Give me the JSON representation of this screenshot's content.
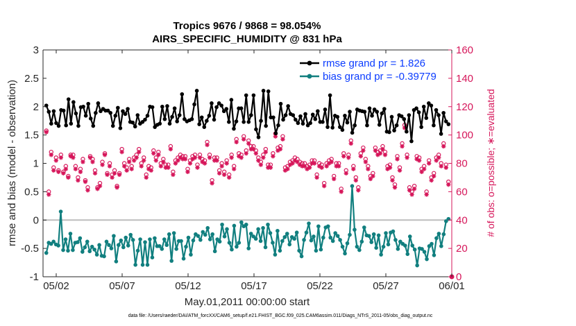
{
  "chart_data": {
    "type": "line",
    "title": "Tropics 9676 / 9868 = 98.054%",
    "subtitle": "AIRS_SPECIFIC_HUMIDITY @ 831 hPa",
    "xlabel": "May.01,2011 00:00:00 start",
    "ylabel": "rmse and bias (model - observation)",
    "ylabel_right": "# of obs: o=possible; ∗=evaluated",
    "footer": "data file: /Users/raeder/DAI/ATM_forcXX/CAM6_setup/f.e21.FHIST_BGC.f09_025.CAM6assim.011/Diags_NTrS_2011-05/obs_diag_output.nc",
    "x_tick_labels": [
      "05/02",
      "05/07",
      "05/12",
      "05/17",
      "05/22",
      "05/27",
      "06/01"
    ],
    "x_tick_days": [
      2,
      7,
      12,
      17,
      22,
      27,
      32
    ],
    "xlim_days": [
      1,
      32
    ],
    "ylim": [
      -1,
      3
    ],
    "y_tick_labels": [
      "-1",
      "-0.5",
      "0",
      "0.5",
      "1",
      "1.5",
      "2",
      "2.5",
      "3"
    ],
    "ylim_right": [
      0,
      160
    ],
    "y_tick_labels_right": [
      "0",
      "20",
      "40",
      "60",
      "80",
      "100",
      "120",
      "140",
      "160"
    ],
    "grid": false,
    "legend_position": "top-right",
    "colors": {
      "rmse": "#000000",
      "bias": "#117f7f",
      "obs": "#d6165a",
      "zero_line": "#bdbdbd",
      "axis": "#262626"
    },
    "series": [
      {
        "name": "rmse grand pr = 1.826",
        "values": [
          2.02,
          1.91,
          1.7,
          1.92,
          1.71,
          1.66,
          1.94,
          1.93,
          1.67,
          2.13,
          1.7,
          2.08,
          1.88,
          1.66,
          1.99,
          2.0,
          1.84,
          2.05,
          1.79,
          1.66,
          1.89,
          2.06,
          1.92,
          1.96,
          1.93,
          1.93,
          1.89,
          1.66,
          1.84,
          1.98,
          1.62,
          1.92,
          1.87,
          1.96,
          1.73,
          1.72,
          1.65,
          1.85,
          1.7,
          1.73,
          1.77,
          1.84,
          2.0,
          1.99,
          1.64,
          1.68,
          1.7,
          2.0,
          1.78,
          2.01,
          1.7,
          1.82,
          1.97,
          1.74,
          1.85,
          2.22,
          1.78,
          1.74,
          1.76,
          1.78,
          2.04,
          2.28,
          1.69,
          1.81,
          1.64,
          1.75,
          1.84,
          2.06,
          1.77,
          1.99,
          2.06,
          2.02,
          1.92,
          1.96,
          1.73,
          2.12,
          1.61,
          1.74,
          1.97,
          1.97,
          1.73,
          2.2,
          1.73,
          1.85,
          2.2,
          1.6,
          1.46,
          1.75,
          2.28,
          1.66,
          2.27,
          1.81,
          1.81,
          1.53,
          1.67,
          2.05,
          1.77,
          1.85,
          2.01,
          1.87,
          1.85,
          1.77,
          1.71,
          1.83,
          1.7,
          1.87,
          1.67,
          1.71,
          1.86,
          1.78,
          1.92,
          1.73,
          1.73,
          1.95,
          1.64,
          2.2,
          1.63,
          1.84,
          1.82,
          1.64,
          1.59,
          1.84,
          1.72,
          1.91,
          1.54,
          1.67,
          1.95,
          1.93,
          1.92,
          1.91,
          1.67,
          1.97,
          1.84,
          1.95,
          1.91,
          1.68,
          1.88,
          1.96,
          1.56,
          1.55,
          1.82,
          1.58,
          1.67,
          1.85,
          1.83,
          1.78,
          1.56,
          1.85,
          1.39,
          1.94,
          1.97,
          1.9,
          1.64,
          2.0,
          1.8,
          2.06,
          2.02,
          1.67,
          1.94,
          1.85,
          1.52,
          1.89,
          1.74,
          1.69
        ]
      },
      {
        "name": "bias grand pr = -0.39779",
        "values": [
          -0.58,
          -0.4,
          -0.42,
          -0.38,
          -0.43,
          -0.45,
          0.15,
          -0.53,
          -0.34,
          -0.54,
          -0.24,
          -0.53,
          -0.4,
          -0.39,
          -0.32,
          -0.56,
          -0.48,
          -0.38,
          -0.55,
          -0.47,
          -0.52,
          -0.61,
          -0.44,
          -0.63,
          -0.64,
          -0.38,
          -0.44,
          -0.5,
          -0.28,
          -0.73,
          -0.44,
          -0.36,
          -0.48,
          -0.31,
          -0.45,
          -0.26,
          -0.35,
          -0.79,
          -0.54,
          -0.34,
          -0.79,
          -0.39,
          -0.79,
          -0.34,
          -0.66,
          -0.32,
          -0.46,
          -0.46,
          -0.51,
          -0.34,
          -0.44,
          -0.25,
          -0.72,
          -0.23,
          -0.51,
          -0.37,
          -0.37,
          -0.68,
          -0.47,
          -0.31,
          -0.61,
          -0.36,
          -0.25,
          -0.28,
          -0.35,
          -0.21,
          -0.26,
          -0.14,
          -0.34,
          -0.25,
          -0.55,
          -0.34,
          -0.38,
          -0.08,
          -0.29,
          -0.16,
          -0.4,
          -0.52,
          -0.1,
          -0.47,
          -0.4,
          -0.04,
          -0.11,
          -0.08,
          -0.5,
          -0.24,
          -0.29,
          -0.33,
          -0.16,
          -0.37,
          -0.14,
          -0.48,
          -0.08,
          -0.23,
          -0.4,
          -0.61,
          -0.19,
          -0.54,
          -0.37,
          -0.3,
          -0.24,
          -0.43,
          -0.3,
          -0.33,
          -0.22,
          -0.54,
          -0.64,
          -0.35,
          -0.22,
          -0.06,
          -0.36,
          -0.29,
          -0.54,
          -0.11,
          -0.52,
          -0.31,
          -0.13,
          -0.11,
          -0.31,
          -0.37,
          -0.23,
          -0.28,
          -0.35,
          -0.47,
          -0.59,
          -0.41,
          -0.26,
          0.6,
          -0.17,
          -0.47,
          -0.53,
          -0.38,
          -0.13,
          -0.27,
          -0.28,
          -0.39,
          -0.25,
          -0.49,
          -0.27,
          -0.61,
          -0.47,
          -0.23,
          -0.43,
          -0.22,
          -0.2,
          -0.35,
          -0.51,
          -0.38,
          -0.42,
          -0.45,
          -0.6,
          -0.29,
          -0.45,
          -0.52,
          -0.8,
          -0.5,
          -0.51,
          -0.56,
          -0.69,
          -0.46,
          -0.42,
          -0.62,
          -0.32,
          -0.24,
          -0.46,
          -0.25,
          -0.02,
          0.02
        ]
      },
      {
        "name": "possible",
        "axis": "right",
        "marker": "o",
        "values": [
          103,
          60,
          88,
          77,
          84,
          75,
          86,
          74,
          78,
          71,
          86,
          86,
          78,
          70,
          76,
          83,
          68,
          63,
          85,
          83,
          75,
          63,
          66,
          81,
          87,
          73,
          80,
          72,
          75,
          64,
          73,
          90,
          80,
          77,
          83,
          78,
          84,
          86,
          90,
          80,
          84,
          72,
          78,
          77,
          89,
          84,
          88,
          80,
          83,
          79,
          79,
          92,
          74,
          82,
          84,
          86,
          85,
          85,
          76,
          82,
          85,
          86,
          79,
          86,
          83,
          82,
          95,
          86,
          68,
          84,
          84,
          75,
          80,
          74,
          82,
          72,
          86,
          78,
          97,
          87,
          86,
          99,
          89,
          96,
          92,
          92,
          89,
          84,
          81,
          86,
          90,
          79,
          79,
          87,
          101,
          91,
          92,
          99,
          77,
          78,
          81,
          82,
          84,
          83,
          81,
          80,
          80,
          78,
          79,
          82,
          82,
          72,
          80,
          79,
          66,
          80,
          82,
          83,
          71,
          80,
          80,
          62,
          87,
          75,
          86,
          96,
          78,
          70,
          63,
          87,
          91,
          83,
          78,
          71,
          73,
          91,
          88,
          89,
          92,
          88,
          78,
          79,
          70,
          65,
          85,
          77,
          94,
          107,
          86,
          63,
          60,
          64,
          85,
          84,
          76,
          78,
          60,
          82,
          70,
          73,
          84,
          86,
          80,
          94,
          79,
          67
        ]
      },
      {
        "name": "evaluated",
        "axis": "right",
        "marker": "*",
        "values": [
          102,
          58,
          86,
          75,
          82,
          74,
          84,
          73,
          76,
          70,
          85,
          84,
          76,
          68,
          74,
          81,
          67,
          61,
          84,
          81,
          73,
          62,
          64,
          79,
          86,
          72,
          78,
          70,
          73,
          63,
          72,
          88,
          78,
          75,
          81,
          76,
          82,
          84,
          88,
          78,
          82,
          70,
          76,
          75,
          87,
          82,
          86,
          78,
          81,
          77,
          77,
          90,
          72,
          80,
          82,
          84,
          83,
          83,
          74,
          80,
          83,
          84,
          77,
          84,
          81,
          80,
          93,
          84,
          66,
          82,
          82,
          73,
          78,
          72,
          80,
          70,
          84,
          76,
          95,
          85,
          84,
          97,
          87,
          94,
          90,
          90,
          87,
          82,
          79,
          84,
          88,
          77,
          77,
          85,
          99,
          89,
          90,
          97,
          75,
          76,
          79,
          80,
          82,
          81,
          79,
          78,
          78,
          76,
          77,
          80,
          80,
          70,
          78,
          77,
          64,
          78,
          80,
          81,
          69,
          78,
          78,
          60,
          85,
          73,
          84,
          94,
          76,
          68,
          61,
          85,
          89,
          81,
          76,
          69,
          71,
          89,
          86,
          87,
          90,
          86,
          76,
          77,
          68,
          63,
          83,
          75,
          92,
          105,
          84,
          61,
          58,
          62,
          83,
          82,
          74,
          76,
          58,
          80,
          68,
          71,
          82,
          84,
          78,
          92,
          77,
          65
        ]
      }
    ]
  }
}
